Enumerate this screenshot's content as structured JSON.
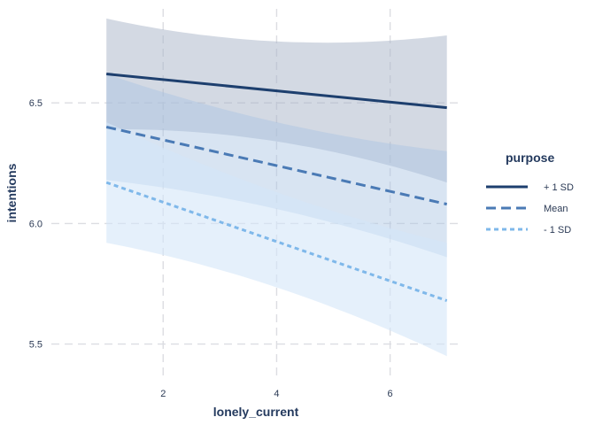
{
  "chart_data": {
    "type": "line",
    "xlabel": "lonely_current",
    "ylabel": "intentions",
    "x_ticks": [
      2,
      4,
      6
    ],
    "y_ticks": [
      5.5,
      6.0,
      6.5
    ],
    "y_tick_labels": [
      "5.5",
      "6.0",
      "6.5"
    ],
    "xlim": [
      0.03,
      7.27
    ],
    "ylim": [
      5.37,
      6.89
    ],
    "grid": true,
    "legend": {
      "title": "purpose",
      "position": "right"
    },
    "x": [
      1,
      7
    ],
    "series": [
      {
        "name": "+ 1 SD",
        "values": [
          6.62,
          6.48
        ],
        "band_upper": [
          6.85,
          6.78
        ],
        "band_lower": [
          6.39,
          6.17
        ],
        "color": "#1d3f6e",
        "line_style": "solid",
        "band_color": "#a8b4c8"
      },
      {
        "name": "Mean",
        "values": [
          6.4,
          6.08
        ],
        "band_upper": [
          6.62,
          6.3
        ],
        "band_lower": [
          6.18,
          5.86
        ],
        "color": "#4a7ab5",
        "line_style": "dashed",
        "band_color": "#a9c4e2"
      },
      {
        "name": "- 1 SD",
        "values": [
          6.17,
          5.68
        ],
        "band_upper": [
          6.42,
          5.92
        ],
        "band_lower": [
          5.92,
          5.45
        ],
        "color": "#7fb8ea",
        "line_style": "dotted",
        "band_color": "#d4e6f8"
      }
    ]
  }
}
